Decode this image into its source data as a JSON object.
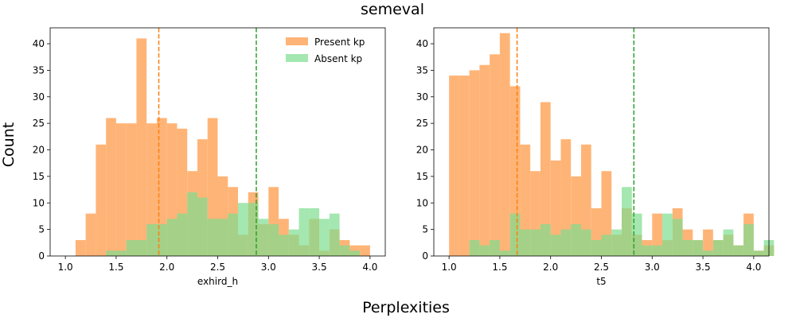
{
  "suptitle": "semeval",
  "supxlabel": "Perplexities",
  "supylabel": "Count",
  "colors": {
    "present": "#ffb477",
    "absent": "#7ddd8f",
    "present_line": "#ff7f0e",
    "absent_line": "#2ca02c",
    "overlap_note": "overlapping bars render olive-green due to alpha blending"
  },
  "legend": {
    "present": "Present kp",
    "absent": "Absent kp",
    "position": "upper right of left panel"
  },
  "chart_data": [
    {
      "type": "histogram",
      "xlabel": "exhird_h",
      "xlim": [
        0.85,
        4.15
      ],
      "ylim": [
        0,
        43
      ],
      "xticks": [
        1.0,
        1.5,
        2.0,
        2.5,
        3.0,
        3.5,
        4.0
      ],
      "xtick_labels": [
        "1.0",
        "1.5",
        "2.0",
        "2.5",
        "3.0",
        "3.5",
        "4.0"
      ],
      "yticks": [
        0,
        5,
        10,
        15,
        20,
        25,
        30,
        35,
        40
      ],
      "ytick_labels": [
        "0",
        "5",
        "10",
        "15",
        "20",
        "25",
        "30",
        "35",
        "40"
      ],
      "series": [
        {
          "name": "Present kp",
          "bin_start": 1.1,
          "bin_width": 0.1,
          "counts": [
            3,
            8,
            21,
            26,
            25,
            25,
            41,
            25,
            26,
            25,
            24,
            16,
            22,
            26,
            15,
            13,
            4,
            12,
            6,
            13,
            7,
            4,
            2,
            7,
            1,
            5,
            3,
            2,
            2,
            0
          ],
          "mean": 1.92
        },
        {
          "name": "Absent kp",
          "bin_start": 1.2,
          "bin_width": 0.1,
          "counts": [
            0,
            0,
            1,
            1,
            3,
            3,
            6,
            6,
            7,
            8,
            12,
            11,
            7,
            7,
            8,
            10,
            10,
            7,
            6,
            4,
            5,
            9,
            9,
            7,
            8,
            2,
            1
          ],
          "mean": 2.88
        }
      ]
    },
    {
      "type": "histogram",
      "xlabel": "t5",
      "xlim": [
        0.85,
        4.15
      ],
      "ylim": [
        0,
        43
      ],
      "xticks": [
        1.0,
        1.5,
        2.0,
        2.5,
        3.0,
        3.5,
        4.0
      ],
      "xtick_labels": [
        "1.0",
        "1.5",
        "2.0",
        "2.5",
        "3.0",
        "3.5",
        "4.0"
      ],
      "yticks": [
        0,
        5,
        10,
        15,
        20,
        25,
        30,
        35,
        40
      ],
      "ytick_labels": [
        "0",
        "5",
        "10",
        "15",
        "20",
        "25",
        "30",
        "35",
        "40"
      ],
      "series": [
        {
          "name": "Present kp",
          "bin_start": 1.0,
          "bin_width": 0.1,
          "counts": [
            34,
            34,
            35,
            36,
            38,
            42,
            32,
            21,
            16,
            29,
            18,
            22,
            15,
            21,
            9,
            16,
            4,
            9,
            4,
            3,
            8,
            3,
            9,
            5,
            3,
            5,
            3,
            4,
            2,
            8,
            1,
            2
          ],
          "mean": 1.67
        },
        {
          "name": "Absent kp",
          "bin_start": 1.0,
          "bin_width": 0.1,
          "counts": [
            0,
            0,
            3,
            2,
            3,
            1,
            8,
            5,
            5,
            6,
            4,
            5,
            6,
            5,
            3,
            4,
            5,
            13,
            8,
            2,
            2,
            8,
            7,
            3,
            3,
            1,
            3,
            5,
            2,
            6,
            1,
            3
          ],
          "mean": 2.82
        }
      ]
    }
  ]
}
